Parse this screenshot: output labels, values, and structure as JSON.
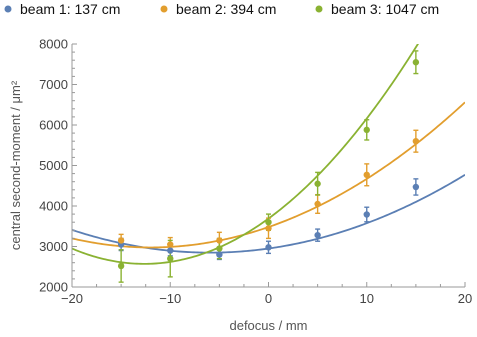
{
  "chart_data": {
    "type": "scatter",
    "xlabel": "defocus / mm",
    "ylabel": "central second‐moment / μm²",
    "xlim": [
      -20,
      20
    ],
    "ylim": [
      2000,
      8000
    ],
    "xticks": [
      -20,
      -10,
      0,
      10,
      20
    ],
    "xtick_labels": [
      "−20",
      "−10",
      "0",
      "10",
      "20"
    ],
    "yticks": [
      2000,
      3000,
      4000,
      5000,
      6000,
      7000,
      8000
    ],
    "ytick_labels": [
      "2000",
      "3000",
      "4000",
      "5000",
      "6000",
      "7000",
      "8000"
    ],
    "legend_position": "top",
    "grid": false,
    "series": [
      {
        "name": "beam 1: 137 cm",
        "color": "#5b7fb4",
        "points": [
          {
            "x": -15,
            "y": 3050,
            "err": 150
          },
          {
            "x": -10,
            "y": 2900,
            "err": 130
          },
          {
            "x": -5,
            "y": 2800,
            "err": 120
          },
          {
            "x": 0,
            "y": 2980,
            "err": 150
          },
          {
            "x": 5,
            "y": 3280,
            "err": 150
          },
          {
            "x": 10,
            "y": 3790,
            "err": 180
          },
          {
            "x": 15,
            "y": 4470,
            "err": 200
          }
        ],
        "fit": {
          "a": 2.85,
          "b": 34.0,
          "c": 2950
        }
      },
      {
        "name": "beam 2: 394 cm",
        "color": "#e29e2e",
        "points": [
          {
            "x": -15,
            "y": 3150,
            "err": 150
          },
          {
            "x": -10,
            "y": 3050,
            "err": 170
          },
          {
            "x": -5,
            "y": 3150,
            "err": 200
          },
          {
            "x": 0,
            "y": 3450,
            "err": 250
          },
          {
            "x": 5,
            "y": 4050,
            "err": 230
          },
          {
            "x": 10,
            "y": 4770,
            "err": 270
          },
          {
            "x": 15,
            "y": 5600,
            "err": 270
          }
        ],
        "fit": {
          "a": 3.5,
          "b": 84.0,
          "c": 3480
        }
      },
      {
        "name": "beam 3: 1047 cm",
        "color": "#8ab232",
        "points": [
          {
            "x": -15,
            "y": 2520,
            "err": 400
          },
          {
            "x": -10,
            "y": 2700,
            "err": 450
          },
          {
            "x": -5,
            "y": 2950,
            "err": 250
          },
          {
            "x": 0,
            "y": 3600,
            "err": 200
          },
          {
            "x": 5,
            "y": 4550,
            "err": 280
          },
          {
            "x": 10,
            "y": 5880,
            "err": 250
          },
          {
            "x": 15,
            "y": 7550,
            "err": 280
          }
        ],
        "fit": {
          "a": 7.0,
          "b": 177.0,
          "c": 3690
        }
      }
    ]
  }
}
